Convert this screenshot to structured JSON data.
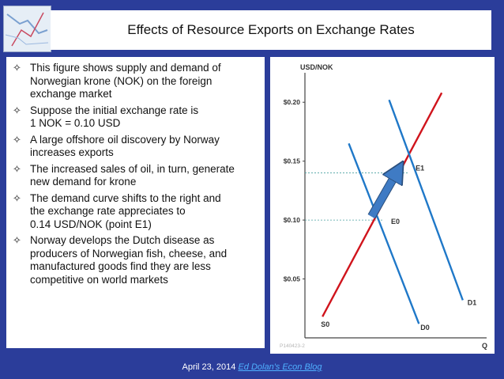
{
  "slide": {
    "title": "Effects of Resource Exports on Exchange Rates",
    "bullets": [
      "This figure shows supply and demand of\nNorwegian krone (NOK) on the foreign\nexchange market",
      "Suppose the initial exchange rate is\n1 NOK = 0.10 USD",
      "A large offshore oil discovery by Norway\nincreases exports",
      "The increased sales of oil, in turn, generate\nnew demand for krone",
      "The demand curve shifts to the right and\nthe exchange rate appreciates to\n0.14 USD/NOK (point E1)",
      "Norway develops the Dutch disease as\nproducers of Norwegian fish, cheese, and\nmanufactured goods find they are less\ncompetitive on world markets"
    ],
    "bullet_glyph": "✧",
    "footer_date": "April 23, 2014 ",
    "footer_link": "Ed Dolan's Econ Blog"
  },
  "chart_data": {
    "type": "line",
    "ylabel": "USD/NOK",
    "xlabel": "Q",
    "y_ticks": [
      "$0.20",
      "$0.15",
      "$0.10",
      "$0.05"
    ],
    "ylim": [
      0.0,
      0.225
    ],
    "watermark": "P140423-2",
    "series": [
      {
        "name": "S0",
        "color": "#d0141c",
        "x": [
          0.1,
          0.78
        ],
        "y": [
          0.018,
          0.208
        ]
      },
      {
        "name": "D0",
        "color": "#1f78c8",
        "x": [
          0.25,
          0.65
        ],
        "y": [
          0.165,
          0.012
        ]
      },
      {
        "name": "D1",
        "color": "#1f78c8",
        "x": [
          0.48,
          0.9
        ],
        "y": [
          0.202,
          0.032
        ]
      }
    ],
    "points": [
      {
        "label": "E0",
        "x": 0.41,
        "y": 0.1
      },
      {
        "label": "E1",
        "x": 0.55,
        "y": 0.14
      }
    ],
    "dashed_levels": [
      0.1,
      0.14
    ],
    "shift_arrow": {
      "from": [
        0.38,
        0.103
      ],
      "to": [
        0.53,
        0.142
      ]
    }
  }
}
